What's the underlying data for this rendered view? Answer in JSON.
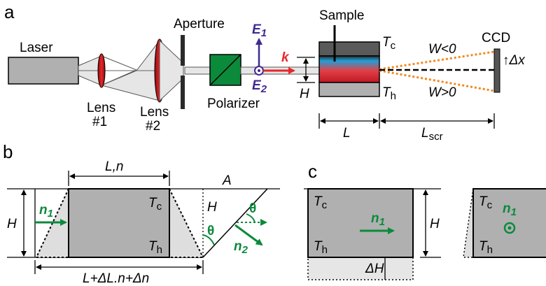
{
  "panels": {
    "a": "a",
    "b": "b",
    "c": "c"
  },
  "panel_a": {
    "laser": "Laser",
    "lens1_line1": "Lens",
    "lens1_line2": "#1",
    "lens2_line1": "Lens",
    "lens2_line2": "#2",
    "aperture": "Aperture",
    "polarizer": "Polarizer",
    "e1": "E",
    "e1_sub": "1",
    "e2": "E",
    "e2_sub": "2",
    "k": "k",
    "sample": "Sample",
    "tc": "T",
    "tc_sub": "c",
    "th": "T",
    "th_sub": "h",
    "h": "H",
    "l": "L",
    "lscr": "L",
    "lscr_sub": "scr",
    "w_neg": "W<0",
    "w_pos": "W>0",
    "ccd": "CCD",
    "dx": "↑Δx"
  },
  "panel_b": {
    "ln": "L,n",
    "h_left": "H",
    "n1": "n",
    "n1_sub": "1",
    "tc": "T",
    "tc_sub": "c",
    "th": "T",
    "th_sub": "h",
    "h_mid": "H",
    "a": "A",
    "theta1": "θ",
    "theta2": "θ",
    "n2": "n",
    "n2_sub": "2",
    "bottom": "L+ΔL.n+Δn"
  },
  "panel_c": {
    "tc": "T",
    "tc_sub": "c",
    "th": "T",
    "th_sub": "h",
    "n1": "n",
    "n1_sub": "1",
    "h": "H",
    "dh": "ΔH",
    "tc2": "T",
    "tc2_sub": "c",
    "th2": "T",
    "th2_sub": "h",
    "n1b": "n",
    "n1b_sub": "1"
  },
  "colors": {
    "green": "#0b8a3c",
    "red": "#e8262a",
    "purple": "#3f2a8f",
    "orange": "#f08a24",
    "grey_box": "#b0b0b0",
    "light_grey": "#dedede",
    "dark_grey": "#555555"
  }
}
